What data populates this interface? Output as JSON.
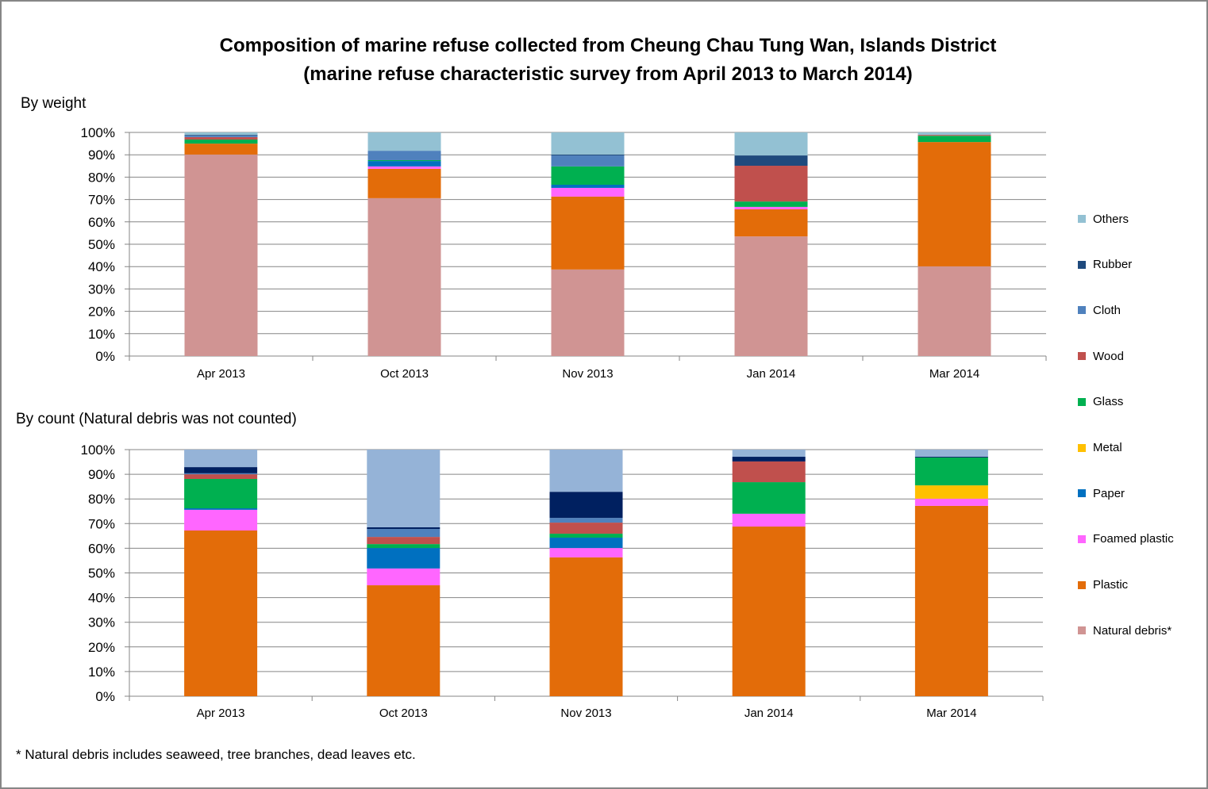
{
  "title_line1": "Composition of marine refuse collected from Cheung Chau Tung Wan, Islands District",
  "title_line2": "(marine refuse characteristic survey from April 2013 to March 2014)",
  "footnote": "* Natural debris includes seaweed, tree branches, dead leaves etc.",
  "legend": [
    {
      "name": "Others",
      "color": "#93C1D3"
    },
    {
      "name": "Rubber",
      "color": "#1F4A7D"
    },
    {
      "name": "Cloth",
      "color": "#4F81BD"
    },
    {
      "name": "Wood",
      "color": "#C0504D"
    },
    {
      "name": "Glass",
      "color": "#00B050"
    },
    {
      "name": "Metal",
      "color": "#FFC000"
    },
    {
      "name": "Paper",
      "color": "#0070C0"
    },
    {
      "name": "Foamed plastic",
      "color": "#FF66FF"
    },
    {
      "name": "Plastic",
      "color": "#E36C09"
    },
    {
      "name": "Natural debris*",
      "color": "#D09493"
    }
  ],
  "chart_data": [
    {
      "type": "bar",
      "stacked": true,
      "title": "By weight",
      "xlabel": "",
      "ylabel": "",
      "ylim": [
        0,
        100
      ],
      "yticks": [
        "0%",
        "10%",
        "20%",
        "30%",
        "40%",
        "50%",
        "60%",
        "70%",
        "80%",
        "90%",
        "100%"
      ],
      "grid": true,
      "legend_position": "right",
      "categories": [
        "Apr 2013",
        "Oct 2013",
        "Nov 2013",
        "Jan 2014",
        "Mar 2014"
      ],
      "series": [
        {
          "name": "Natural debris*",
          "color": "#D09493",
          "values": [
            90.1,
            70.6,
            38.7,
            53.5,
            40.1
          ]
        },
        {
          "name": "Plastic",
          "color": "#E36C09",
          "values": [
            4.9,
            13.1,
            32.6,
            12.1,
            55.6
          ]
        },
        {
          "name": "Foamed plastic",
          "color": "#FF66FF",
          "values": [
            0.0,
            1.1,
            3.9,
            1.1,
            0.0
          ]
        },
        {
          "name": "Paper",
          "color": "#0070C0",
          "values": [
            0.0,
            2.4,
            1.4,
            0.0,
            0.0
          ]
        },
        {
          "name": "Metal",
          "color": "#FFC000",
          "values": [
            0.0,
            0.0,
            0.0,
            0.0,
            0.0
          ]
        },
        {
          "name": "Glass",
          "color": "#00B050",
          "values": [
            1.8,
            0.4,
            8.2,
            2.4,
            2.8
          ]
        },
        {
          "name": "Wood",
          "color": "#C0504D",
          "values": [
            1.1,
            0.0,
            0.0,
            16.0,
            0.4
          ]
        },
        {
          "name": "Cloth",
          "color": "#4F81BD",
          "values": [
            0.7,
            4.2,
            4.9,
            0.0,
            0.0
          ]
        },
        {
          "name": "Rubber",
          "color": "#1F4A7D",
          "values": [
            0.3,
            0.0,
            0.4,
            4.6,
            0.0
          ]
        },
        {
          "name": "Others",
          "color": "#93C1D3",
          "values": [
            1.1,
            8.2,
            9.9,
            10.3,
            1.1
          ]
        }
      ]
    },
    {
      "type": "bar",
      "stacked": true,
      "title": "By count (Natural debris was not counted)",
      "xlabel": "",
      "ylabel": "",
      "ylim": [
        0,
        100
      ],
      "yticks": [
        "0%",
        "10%",
        "20%",
        "30%",
        "40%",
        "50%",
        "60%",
        "70%",
        "80%",
        "90%",
        "100%"
      ],
      "grid": true,
      "legend_position": "right",
      "categories": [
        "Apr 2013",
        "Oct 2013",
        "Nov 2013",
        "Jan 2014",
        "Mar 2014"
      ],
      "series": [
        {
          "name": "Natural debris*",
          "color": "#D09493",
          "values": [
            0,
            0,
            0,
            0,
            0
          ]
        },
        {
          "name": "Plastic",
          "color": "#E36C09",
          "values": [
            67.2,
            45.0,
            56.3,
            68.8,
            77.2
          ]
        },
        {
          "name": "Foamed plastic",
          "color": "#FF66FF",
          "values": [
            8.4,
            6.8,
            3.8,
            5.2,
            2.9
          ]
        },
        {
          "name": "Paper",
          "color": "#0070C0",
          "values": [
            0.6,
            8.3,
            4.2,
            0.0,
            0.0
          ]
        },
        {
          "name": "Metal",
          "color": "#FFC000",
          "values": [
            0.0,
            0.0,
            0.0,
            0.0,
            5.4
          ]
        },
        {
          "name": "Glass",
          "color": "#00B050",
          "values": [
            11.9,
            1.6,
            1.6,
            12.8,
            11.3
          ]
        },
        {
          "name": "Wood",
          "color": "#C0504D",
          "values": [
            1.9,
            2.9,
            4.5,
            8.4,
            0.0
          ]
        },
        {
          "name": "Cloth",
          "color": "#4F81BD",
          "values": [
            0.4,
            3.2,
            1.9,
            0.0,
            0.0
          ]
        },
        {
          "name": "Rubber",
          "color": "#002060",
          "values": [
            2.5,
            0.7,
            10.6,
            1.9,
            0.3
          ]
        },
        {
          "name": "Others",
          "color": "#95B3D7",
          "values": [
            7.1,
            31.5,
            17.1,
            2.9,
            2.9
          ]
        }
      ]
    }
  ]
}
